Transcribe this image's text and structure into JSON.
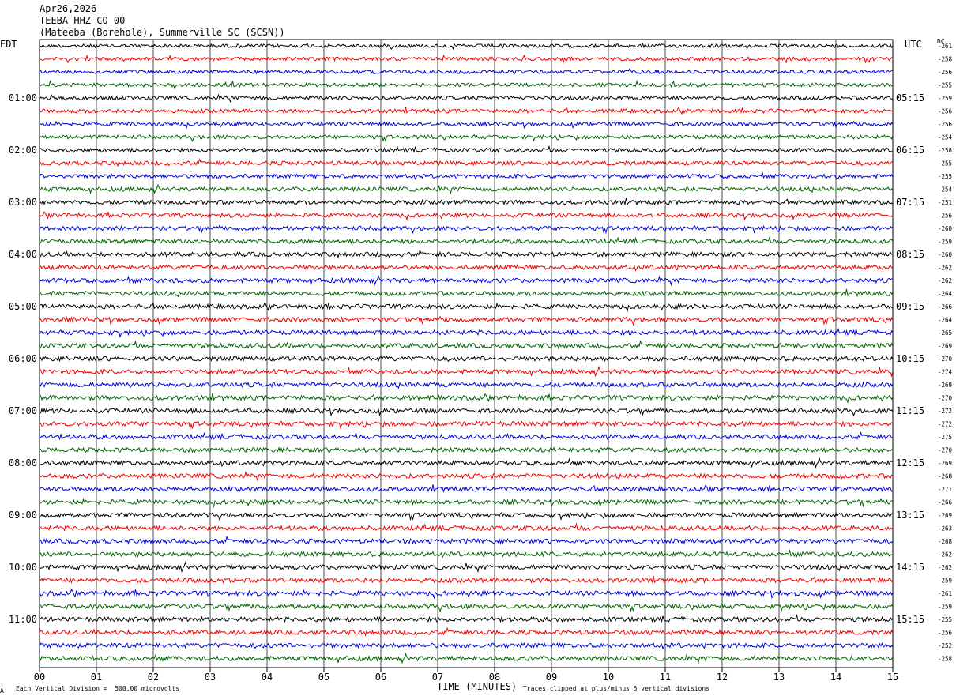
{
  "header": {
    "date": "Apr26,2026",
    "channel": "TEEBA HHZ CO 00",
    "station": "(Mateeba (Borehole), Summerville SC (SCSN))"
  },
  "left_tz": "EDT",
  "right_tz": "UTC",
  "dc_label": "DC",
  "footer": {
    "corner_mark": "Α",
    "scale_note": "Each Vertical Division =  500.00 microvolts",
    "x_title": "TIME (MINUTES)",
    "clip_note": "Traces clipped at plus/minus 5 vertical divisions"
  },
  "chart_data": {
    "type": "line",
    "title": "TEEBA HHZ CO 00",
    "xlabel": "TIME (MINUTES)",
    "x_ticks": [
      "00",
      "01",
      "02",
      "03",
      "04",
      "05",
      "06",
      "07",
      "08",
      "09",
      "10",
      "11",
      "12",
      "13",
      "14",
      "15"
    ],
    "xlim": [
      0,
      15
    ],
    "grid": true,
    "trace_colors": [
      "#000000",
      "#ee0000",
      "#0000dd",
      "#006400"
    ],
    "left_hour_labels": [
      "01:00",
      "02:00",
      "03:00",
      "04:00",
      "05:00",
      "06:00",
      "07:00",
      "08:00",
      "09:00",
      "10:00",
      "11:00"
    ],
    "right_hour_labels": [
      "05:15",
      "06:15",
      "07:15",
      "08:15",
      "09:15",
      "10:15",
      "11:15",
      "12:15",
      "13:15",
      "14:15",
      "15:15"
    ],
    "dc_offsets": [
      "-261",
      "-258",
      "-256",
      "-255",
      "-259",
      "-256",
      "-256",
      "-254",
      "-258",
      "-255",
      "-255",
      "-254",
      "-251",
      "-256",
      "-260",
      "-259",
      "-260",
      "-262",
      "-262",
      "-264",
      "-266",
      "-264",
      "-265",
      "-269",
      "-270",
      "-274",
      "-269",
      "-270",
      "-272",
      "-272",
      "-275",
      "-270",
      "-269",
      "-268",
      "-271",
      "-266",
      "-269",
      "-263",
      "-268",
      "-262",
      "-262",
      "-259",
      "-261",
      "-259",
      "-255",
      "-256",
      "-252",
      "-258"
    ]
  }
}
